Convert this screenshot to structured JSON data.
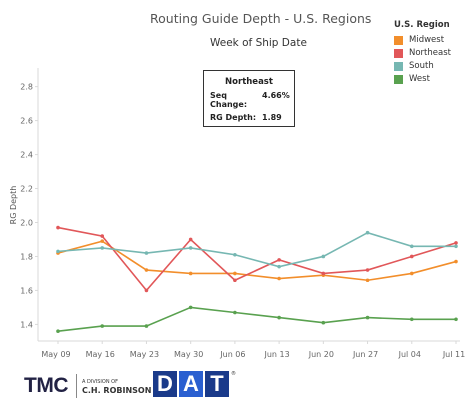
{
  "title": "Routing Guide Depth - U.S. Regions",
  "subtitle": "Week of Ship Date",
  "legend": {
    "title": "U.S. Region",
    "items": [
      {
        "label": "Midwest",
        "color": "#f28e2b"
      },
      {
        "label": "Northeast",
        "color": "#e15759"
      },
      {
        "label": "South",
        "color": "#76b7b2"
      },
      {
        "label": "West",
        "color": "#59a14f"
      }
    ]
  },
  "tooltip": {
    "title": "Northeast",
    "rows": [
      {
        "label": "Seq Change:",
        "value": "4.66%"
      },
      {
        "label": "RG Depth:",
        "value": "1.89"
      }
    ]
  },
  "chart_data": {
    "type": "line",
    "title": "Routing Guide Depth - U.S. Regions",
    "subtitle": "Week of Ship Date",
    "xlabel": "",
    "ylabel": "RG Depth",
    "categories": [
      "May 09",
      "May 16",
      "May 23",
      "May 30",
      "Jun 06",
      "Jun 13",
      "Jun 20",
      "Jun 27",
      "Jul 04",
      "Jul 11"
    ],
    "y_ticks": [
      "1.4",
      "1.6",
      "1.8",
      "2.0",
      "2.2",
      "2.4",
      "2.6",
      "2.8"
    ],
    "ylim": [
      1.3,
      2.9
    ],
    "grid": false,
    "legend_position": "top-right",
    "series": [
      {
        "name": "Midwest",
        "color": "#f28e2b",
        "values": [
          1.82,
          1.89,
          1.72,
          1.7,
          1.7,
          1.67,
          1.69,
          1.66,
          1.7,
          1.77
        ]
      },
      {
        "name": "Northeast",
        "color": "#e15759",
        "values": [
          1.97,
          1.92,
          1.6,
          1.9,
          1.66,
          1.78,
          1.7,
          1.72,
          1.8,
          1.88
        ]
      },
      {
        "name": "South",
        "color": "#76b7b2",
        "values": [
          1.83,
          1.85,
          1.82,
          1.85,
          1.81,
          1.74,
          1.8,
          1.94,
          1.86,
          1.86
        ]
      },
      {
        "name": "West",
        "color": "#59a14f",
        "values": [
          1.36,
          1.39,
          1.39,
          1.5,
          1.47,
          1.44,
          1.41,
          1.44,
          1.43,
          1.43
        ]
      }
    ]
  },
  "footer": {
    "tmc_logo": "TMC",
    "tmc_division": "A DIVISION OF",
    "tmc_parent": "C.H. ROBINSON",
    "dat_letters": [
      "D",
      "A",
      "T"
    ],
    "dat_trademark": "®"
  }
}
